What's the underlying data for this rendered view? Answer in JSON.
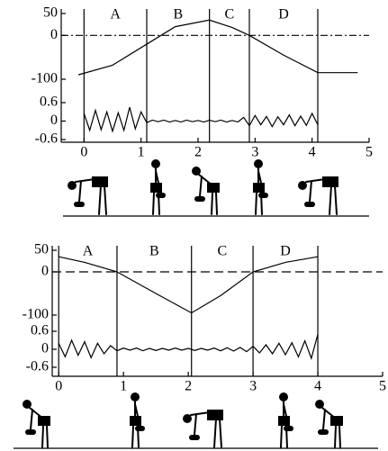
{
  "chart_data": [
    {
      "type": "line",
      "x": [
        -0.1,
        0.5,
        1.1,
        1.6,
        2.2,
        2.6,
        2.9,
        3.5,
        4.1,
        4.8
      ],
      "values": [
        -90,
        -68,
        -20,
        20,
        35,
        18,
        0,
        -45,
        -85,
        -85
      ],
      "xlim": [
        -0.4,
        5
      ],
      "xticks": [
        0,
        1,
        2,
        3,
        4,
        5
      ],
      "ylim": [
        -100,
        50
      ],
      "yticks": [
        50,
        0,
        -100
      ],
      "hline": {
        "value": 0,
        "style": "dash-dot"
      },
      "regions": {
        "labels": [
          "A",
          "B",
          "C",
          "D"
        ],
        "boundaries": [
          0,
          1.1,
          2.2,
          2.9,
          4.1
        ]
      },
      "emg": {
        "x": [
          0,
          0.1,
          0.2,
          0.3,
          0.4,
          0.5,
          0.6,
          0.7,
          0.8,
          0.9,
          1.0,
          1.1,
          1.2,
          1.3,
          1.4,
          1.5,
          1.6,
          1.7,
          1.8,
          1.9,
          2.0,
          2.1,
          2.2,
          2.3,
          2.4,
          2.5,
          2.6,
          2.7,
          2.8,
          2.9,
          3.0,
          3.1,
          3.2,
          3.3,
          3.4,
          3.5,
          3.6,
          3.7,
          3.8,
          3.9,
          4.0,
          4.1
        ],
        "values": [
          0.25,
          -0.3,
          0.35,
          -0.28,
          0.3,
          -0.33,
          0.27,
          -0.3,
          0.45,
          -0.25,
          0.3,
          -0.05,
          0.03,
          -0.02,
          0.03,
          -0.03,
          0.02,
          -0.03,
          0.03,
          -0.02,
          0.02,
          -0.03,
          0.03,
          -0.02,
          0.03,
          -0.03,
          0.02,
          -0.03,
          0.12,
          -0.15,
          0.18,
          -0.12,
          0.15,
          -0.18,
          0.14,
          -0.12,
          0.2,
          -0.15,
          0.16,
          -0.14,
          0.25,
          -0.12
        ],
        "ylim": [
          -0.6,
          0.6
        ],
        "yticks": [
          0.6,
          0,
          -0.6
        ]
      }
    },
    {
      "type": "line",
      "x": [
        0,
        0.4,
        0.9,
        1.5,
        2.05,
        2.5,
        3.0,
        3.5,
        4.0
      ],
      "values": [
        35,
        22,
        0,
        -50,
        -95,
        -55,
        0,
        22,
        35
      ],
      "xlim": [
        -0.1,
        5
      ],
      "xticks": [
        0,
        1,
        2,
        3,
        4,
        5
      ],
      "ylim": [
        -100,
        50
      ],
      "yticks": [
        50,
        0,
        -100
      ],
      "hline": {
        "value": 0,
        "style": "dashed"
      },
      "regions": {
        "labels": [
          "A",
          "B",
          "C",
          "D"
        ],
        "boundaries": [
          0,
          0.9,
          2.05,
          3.0,
          4.0
        ]
      },
      "emg": {
        "x": [
          0,
          0.1,
          0.2,
          0.3,
          0.4,
          0.5,
          0.6,
          0.7,
          0.8,
          0.9,
          1.0,
          1.1,
          1.2,
          1.3,
          1.4,
          1.5,
          1.6,
          1.7,
          1.8,
          1.9,
          2.0,
          2.1,
          2.2,
          2.3,
          2.4,
          2.5,
          2.6,
          2.7,
          2.8,
          2.9,
          3.0,
          3.1,
          3.2,
          3.3,
          3.4,
          3.5,
          3.6,
          3.7,
          3.8,
          3.9,
          4.0
        ],
        "values": [
          0.2,
          -0.25,
          0.3,
          -0.2,
          0.25,
          -0.28,
          0.2,
          -0.15,
          0.12,
          -0.05,
          0.04,
          -0.03,
          0.04,
          -0.05,
          0.03,
          -0.04,
          0.03,
          -0.03,
          0.04,
          -0.03,
          0.03,
          -0.04,
          0.03,
          -0.03,
          0.04,
          -0.05,
          0.05,
          -0.06,
          0.06,
          -0.08,
          0.1,
          -0.12,
          0.15,
          -0.15,
          0.2,
          -0.18,
          0.22,
          -0.25,
          0.28,
          -0.3,
          0.5
        ],
        "ylim": [
          -0.6,
          0.6
        ],
        "yticks": [
          0.6,
          0,
          -0.6
        ]
      }
    }
  ]
}
